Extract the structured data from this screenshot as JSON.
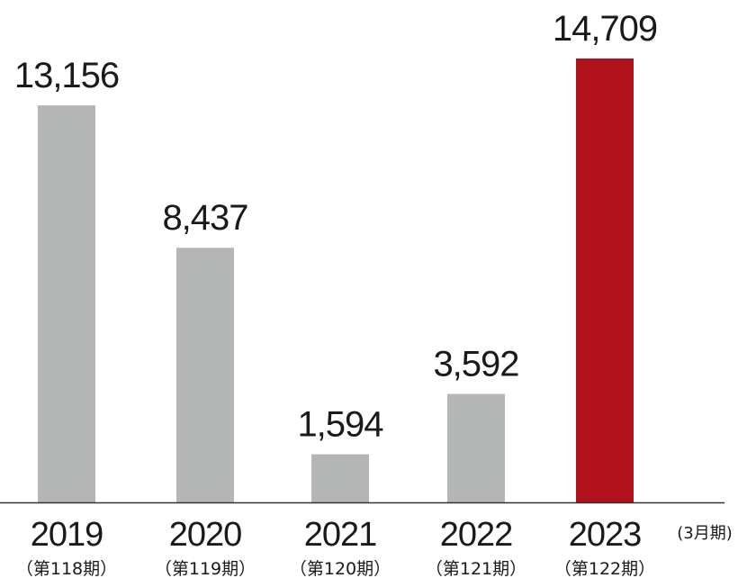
{
  "chart_data": {
    "type": "bar",
    "categories": [
      "2019",
      "2020",
      "2021",
      "2022",
      "2023"
    ],
    "period_labels": [
      "（第118期）",
      "（第119期）",
      "（第120期）",
      "（第121期）",
      "（第122期）"
    ],
    "values": [
      13156,
      8437,
      1594,
      3592,
      14709
    ],
    "value_labels": [
      "13,156",
      "8,437",
      "1,594",
      "3,592",
      "14,709"
    ],
    "highlight_index": 4,
    "colors": {
      "bar": "#b4b5b5",
      "highlight": "#b0111b",
      "axis": "#333333",
      "text": "#1a1a1a"
    },
    "x_unit_label": "(3月期)",
    "ylim": [
      0,
      15000
    ],
    "grid": false,
    "title": "",
    "xlabel": "",
    "ylabel": ""
  }
}
